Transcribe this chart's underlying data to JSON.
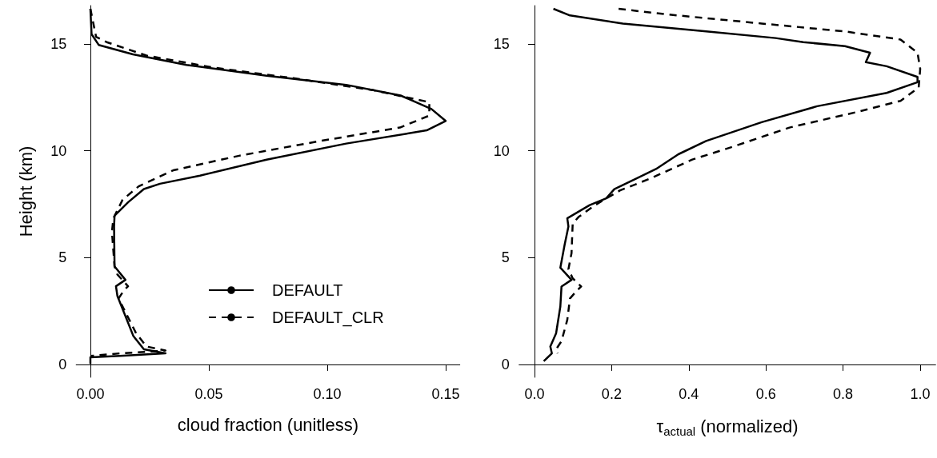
{
  "chart_data": [
    {
      "type": "line",
      "xlabel": "cloud fraction (unitless)",
      "ylabel": "Height (km)",
      "xlim": [
        -0.006,
        0.156
      ],
      "xticks": [
        {
          "value": 0,
          "label": "0.00"
        },
        0.05,
        {
          "value": 0.1,
          "label": "0.10"
        },
        0.15
      ],
      "ylim": [
        -0.6,
        16.8
      ],
      "yticks": [
        0,
        5,
        10,
        15
      ],
      "legend": "bottom right",
      "marker": "none",
      "grid": false,
      "series": [
        {
          "name": "DEFAULT",
          "color": "#000000",
          "line_style": "solid",
          "x": [
            0.0,
            0.0005,
            0.0035,
            0.018,
            0.0406,
            0.0744,
            0.108,
            0.131,
            0.144,
            0.15,
            0.142,
            0.108,
            0.0744,
            0.0463,
            0.0294,
            0.0226,
            0.0159,
            0.0102,
            0.01,
            0.0102,
            0.0148,
            0.0108,
            0.0114,
            0.0181,
            0.0226,
            0.0317,
            0.0125,
            0.0,
            0.0
          ],
          "values": [
            16.65,
            15.46,
            14.96,
            14.52,
            14.02,
            13.52,
            13.09,
            12.59,
            11.96,
            11.4,
            10.96,
            10.34,
            9.59,
            8.84,
            8.46,
            8.21,
            7.59,
            6.96,
            6.46,
            4.59,
            3.96,
            3.66,
            3.21,
            1.34,
            0.71,
            0.52,
            0.4,
            0.34,
            0.03
          ]
        },
        {
          "name": "DEFAULT_CLR",
          "color": "#000000",
          "line_style": "dashed",
          "x": [
            0.0,
            0.0024,
            0.0069,
            0.0237,
            0.0519,
            0.0857,
            0.1195,
            0.1431,
            0.1431,
            0.1307,
            0.097,
            0.0632,
            0.035,
            0.0204,
            0.0136,
            0.0097,
            0.0091,
            0.0102,
            0.0114,
            0.0159,
            0.0142,
            0.0119,
            0.0193,
            0.0237,
            0.0317,
            0.0125,
            0.0
          ],
          "values": [
            16.65,
            15.34,
            15.09,
            14.46,
            13.9,
            13.4,
            12.84,
            12.28,
            11.65,
            11.09,
            10.46,
            9.78,
            9.09,
            8.34,
            7.71,
            6.84,
            6.21,
            4.59,
            4.21,
            3.66,
            3.47,
            3.09,
            1.46,
            0.84,
            0.65,
            0.52,
            0.4
          ]
        }
      ]
    },
    {
      "type": "line",
      "xlabel": "τ$_{actual}$ (normalized)",
      "xlim": [
        -0.04,
        1.04
      ],
      "xticks": [
        {
          "value": 0,
          "label": "0.0"
        },
        0.2,
        0.4,
        0.6,
        0.8,
        {
          "value": 1,
          "label": "1.0"
        }
      ],
      "ylim": [
        -0.6,
        16.8
      ],
      "yticks": [
        0,
        5,
        10,
        15
      ],
      "marker": "none",
      "grid": false,
      "series": [
        {
          "color": "#000000",
          "line_style": "solid",
          "x": [
            0.049,
            0.092,
            0.229,
            0.445,
            0.625,
            0.697,
            0.805,
            0.87,
            0.859,
            0.913,
            0.993,
            0.993,
            0.913,
            0.733,
            0.589,
            0.445,
            0.373,
            0.315,
            0.265,
            0.207,
            0.186,
            0.143,
            0.085,
            0.088,
            0.078,
            0.067,
            0.096,
            0.07,
            0.067,
            0.056,
            0.041,
            0.045,
            0.024
          ],
          "values": [
            16.65,
            16.34,
            15.96,
            15.59,
            15.28,
            15.09,
            14.9,
            14.59,
            14.15,
            13.96,
            13.46,
            13.21,
            12.71,
            12.09,
            11.34,
            10.46,
            9.84,
            9.15,
            8.71,
            8.21,
            7.78,
            7.46,
            6.84,
            6.46,
            5.59,
            4.53,
            3.96,
            3.65,
            2.71,
            1.46,
            0.84,
            0.52,
            0.15
          ]
        },
        {
          "color": "#000000",
          "line_style": "dashed",
          "x": [
            0.218,
            0.337,
            0.589,
            0.805,
            0.949,
            0.993,
            1.0,
            0.996,
            0.949,
            0.841,
            0.661,
            0.517,
            0.409,
            0.301,
            0.222,
            0.157,
            0.114,
            0.099,
            0.096,
            0.088,
            0.099,
            0.121,
            0.11,
            0.092,
            0.085,
            0.07,
            0.056,
            0.06
          ],
          "values": [
            16.65,
            16.4,
            15.96,
            15.59,
            15.21,
            14.59,
            13.84,
            12.96,
            12.34,
            11.84,
            11.09,
            10.21,
            9.59,
            8.71,
            8.15,
            7.46,
            6.9,
            6.59,
            5.21,
            4.46,
            4.03,
            3.65,
            3.46,
            3.09,
            2.09,
            1.09,
            0.71,
            0.52
          ]
        }
      ]
    }
  ]
}
